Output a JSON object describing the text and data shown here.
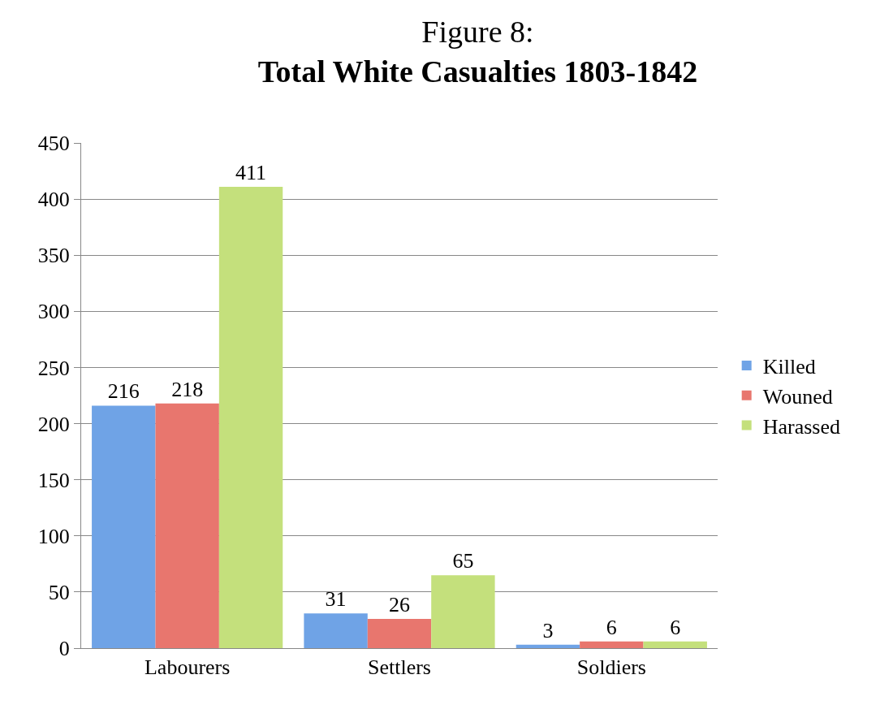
{
  "chart_data": {
    "type": "bar",
    "title": "Figure 8:",
    "subtitle": "Total White Casualties 1803-1842",
    "categories": [
      "Labourers",
      "Settlers",
      "Soldiers"
    ],
    "series": [
      {
        "name": "Killed",
        "color": "#6fa3e6",
        "values": [
          216,
          31,
          3
        ]
      },
      {
        "name": "Wouned",
        "color": "#e8766e",
        "values": [
          218,
          26,
          6
        ]
      },
      {
        "name": "Harassed",
        "color": "#c4e07c",
        "values": [
          411,
          65,
          6
        ]
      }
    ],
    "ylim": [
      0,
      450
    ],
    "yticks": [
      0,
      50,
      100,
      150,
      200,
      250,
      300,
      350,
      400,
      450
    ],
    "grid": "y",
    "legend": "right",
    "data_labels": true
  }
}
